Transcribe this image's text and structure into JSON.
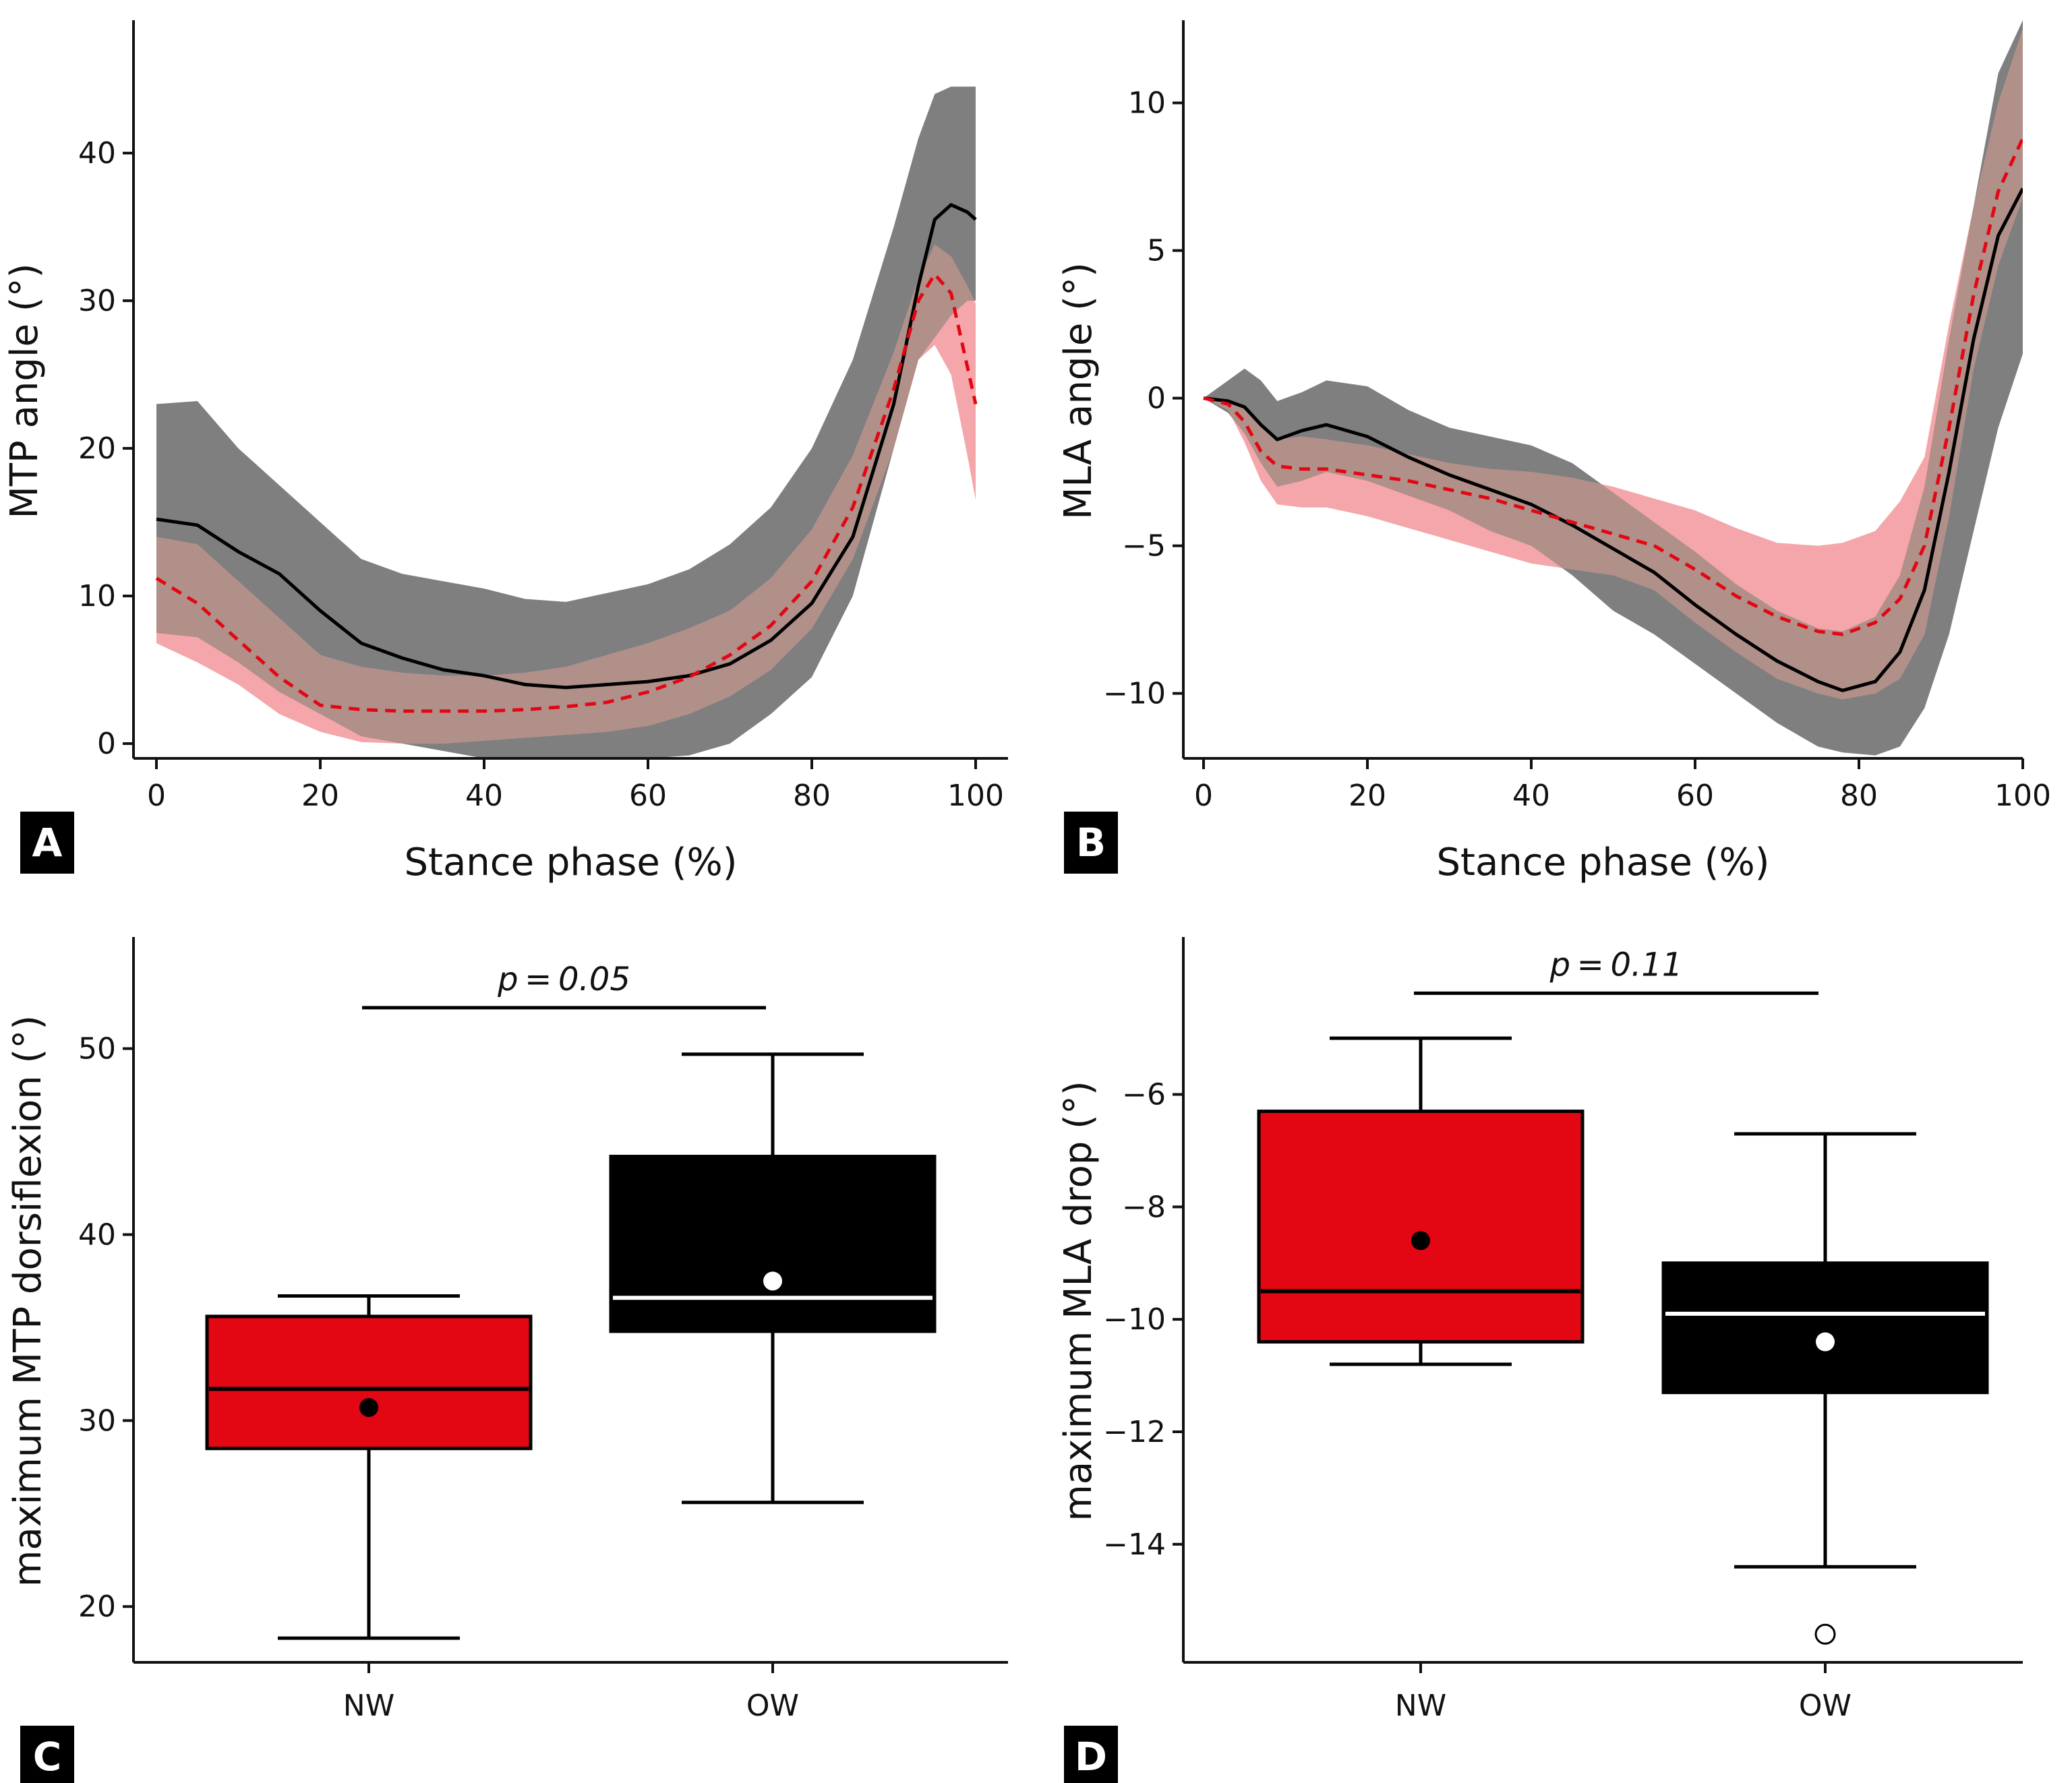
{
  "colors": {
    "nw": "#e30613",
    "ow": "#000000",
    "ow_band": "#7f7f7f",
    "nw_band": "#f4a6aa",
    "overlap_band": "#b09089",
    "axis": "#111111",
    "label_bg": "#000000",
    "label_text": "#ffffff"
  },
  "chart_data": [
    {
      "id": "A",
      "panel_label": "A",
      "type": "line",
      "title": "",
      "xlabel": "Stance phase (%)",
      "ylabel": "MTP angle (°)",
      "xlim": [
        -3,
        104
      ],
      "ylim": [
        -1,
        49
      ],
      "xticks": [
        0,
        20,
        40,
        60,
        80,
        100
      ],
      "xtick_labels": [
        "0",
        "20",
        "40",
        "60",
        "80",
        "100"
      ],
      "yticks": [
        0,
        10,
        20,
        30,
        40
      ],
      "ytick_labels": [
        "0",
        "10",
        "20",
        "30",
        "40"
      ],
      "series": [
        {
          "name": "OW",
          "style": "solid",
          "x": [
            0,
            5,
            10,
            15,
            20,
            25,
            30,
            35,
            40,
            45,
            50,
            55,
            60,
            65,
            70,
            75,
            80,
            85,
            90,
            93,
            95,
            97,
            99,
            100
          ],
          "mean": [
            15.2,
            14.8,
            13.0,
            11.5,
            9.0,
            6.8,
            5.8,
            5.0,
            4.6,
            4.0,
            3.8,
            4.0,
            4.2,
            4.6,
            5.4,
            7.0,
            9.5,
            14.0,
            23.0,
            31.0,
            35.5,
            36.5,
            36.0,
            35.5
          ],
          "upper": [
            23.0,
            23.2,
            20.0,
            17.5,
            15.0,
            12.5,
            11.5,
            11.0,
            10.5,
            9.8,
            9.6,
            10.2,
            10.8,
            11.8,
            13.5,
            16.0,
            20.0,
            26.0,
            35.0,
            41.0,
            44.0,
            44.5,
            44.5,
            44.5
          ],
          "lower": [
            7.5,
            7.2,
            5.5,
            3.5,
            2.0,
            0.5,
            0.0,
            -0.5,
            -1.0,
            -1.2,
            -1.2,
            -1.2,
            -1.0,
            -0.8,
            0.0,
            2.0,
            4.5,
            10.0,
            20.0,
            26.0,
            27.5,
            29.0,
            30.0,
            30.0
          ]
        },
        {
          "name": "NW",
          "style": "dashed",
          "x": [
            0,
            5,
            10,
            15,
            20,
            25,
            30,
            35,
            40,
            45,
            50,
            55,
            60,
            65,
            70,
            75,
            80,
            85,
            90,
            93,
            95,
            97,
            99,
            100
          ],
          "mean": [
            11.2,
            9.5,
            7.0,
            4.5,
            2.6,
            2.3,
            2.2,
            2.2,
            2.2,
            2.3,
            2.5,
            2.8,
            3.5,
            4.5,
            6.0,
            8.0,
            11.0,
            16.0,
            24.0,
            30.0,
            31.8,
            30.5,
            25.5,
            23.0
          ],
          "upper": [
            14.0,
            13.5,
            11.0,
            8.5,
            6.0,
            5.2,
            4.8,
            4.6,
            4.6,
            4.8,
            5.2,
            6.0,
            6.8,
            7.8,
            9.0,
            11.2,
            14.5,
            19.5,
            26.5,
            31.5,
            33.8,
            33.0,
            31.0,
            29.8
          ],
          "lower": [
            6.8,
            5.5,
            4.0,
            2.0,
            0.8,
            0.1,
            0.0,
            0.0,
            0.2,
            0.4,
            0.6,
            0.8,
            1.2,
            2.0,
            3.2,
            5.0,
            7.8,
            12.5,
            20.0,
            26.0,
            27.0,
            25.0,
            19.5,
            16.5
          ]
        }
      ]
    },
    {
      "id": "B",
      "panel_label": "B",
      "type": "line",
      "title": "",
      "xlabel": "Stance phase (%)",
      "ylabel": "MLA angle (°)",
      "xlim": [
        -3,
        104
      ],
      "ylim": [
        -12.2,
        12.8
      ],
      "xticks": [
        0,
        20,
        40,
        60,
        80,
        100
      ],
      "xtick_labels": [
        "0",
        "20",
        "40",
        "60",
        "80",
        "100"
      ],
      "yticks": [
        -10,
        -5,
        0,
        5,
        10
      ],
      "ytick_labels": [
        "−10",
        "−5",
        "0",
        "5",
        "10"
      ],
      "series": [
        {
          "name": "OW",
          "style": "solid",
          "x": [
            0,
            3,
            5,
            7,
            9,
            12,
            15,
            20,
            25,
            30,
            35,
            40,
            45,
            50,
            55,
            60,
            65,
            70,
            75,
            78,
            82,
            85,
            88,
            91,
            94,
            97,
            100
          ],
          "mean": [
            0.0,
            -0.1,
            -0.3,
            -0.9,
            -1.4,
            -1.1,
            -0.9,
            -1.3,
            -2.0,
            -2.6,
            -3.1,
            -3.6,
            -4.3,
            -5.1,
            -5.9,
            -7.0,
            -8.0,
            -8.9,
            -9.6,
            -9.9,
            -9.6,
            -8.6,
            -6.5,
            -2.5,
            2.0,
            5.5,
            7.1
          ],
          "upper": [
            0.0,
            0.6,
            1.0,
            0.6,
            -0.1,
            0.2,
            0.6,
            0.4,
            -0.4,
            -1.0,
            -1.3,
            -1.6,
            -2.2,
            -3.2,
            -4.2,
            -5.2,
            -6.3,
            -7.2,
            -7.8,
            -7.9,
            -7.4,
            -6.0,
            -3.0,
            2.0,
            6.5,
            11.0,
            12.8
          ],
          "lower": [
            0.0,
            -0.5,
            -1.2,
            -2.2,
            -3.0,
            -2.8,
            -2.5,
            -2.8,
            -3.3,
            -3.8,
            -4.5,
            -5.0,
            -6.0,
            -7.2,
            -8.0,
            -9.0,
            -10.0,
            -11.0,
            -11.8,
            -12.0,
            -12.1,
            -11.8,
            -10.5,
            -8.0,
            -4.5,
            -1.0,
            1.5
          ]
        },
        {
          "name": "NW",
          "style": "dashed",
          "x": [
            0,
            3,
            5,
            7,
            9,
            12,
            15,
            20,
            25,
            30,
            35,
            40,
            45,
            50,
            55,
            60,
            65,
            70,
            75,
            78,
            82,
            85,
            88,
            91,
            94,
            97,
            100
          ],
          "mean": [
            0.0,
            -0.2,
            -0.8,
            -1.8,
            -2.3,
            -2.4,
            -2.4,
            -2.6,
            -2.8,
            -3.1,
            -3.4,
            -3.8,
            -4.2,
            -4.6,
            -5.0,
            -5.8,
            -6.7,
            -7.4,
            -7.9,
            -8.0,
            -7.6,
            -6.8,
            -5.0,
            -1.0,
            3.5,
            7.0,
            8.8
          ],
          "upper": [
            0.0,
            -0.1,
            -0.3,
            -0.9,
            -1.4,
            -1.3,
            -1.4,
            -1.6,
            -1.9,
            -2.2,
            -2.4,
            -2.5,
            -2.7,
            -3.0,
            -3.4,
            -3.8,
            -4.4,
            -4.9,
            -5.0,
            -4.9,
            -4.5,
            -3.5,
            -2.0,
            2.5,
            6.5,
            10.0,
            12.5
          ],
          "lower": [
            0.0,
            -0.4,
            -1.5,
            -2.8,
            -3.6,
            -3.7,
            -3.7,
            -4.0,
            -4.4,
            -4.8,
            -5.2,
            -5.6,
            -5.8,
            -6.0,
            -6.5,
            -7.6,
            -8.6,
            -9.5,
            -10.0,
            -10.2,
            -10.0,
            -9.5,
            -8.0,
            -4.0,
            1.0,
            4.5,
            6.8
          ]
        }
      ]
    },
    {
      "id": "C",
      "panel_label": "C",
      "type": "box",
      "title": "",
      "xlabel": "",
      "ylabel": "maximum MTP dorsiflexion (°)",
      "categories": [
        "NW",
        "OW"
      ],
      "ylim": [
        17,
        56
      ],
      "yticks": [
        20,
        30,
        40,
        50
      ],
      "ytick_labels": [
        "20",
        "30",
        "40",
        "50"
      ],
      "boxes": [
        {
          "group": "NW",
          "whisker_low": 18.3,
          "q1": 28.5,
          "median": 31.7,
          "q3": 35.6,
          "whisker_high": 36.7,
          "mean": 30.7,
          "outliers": []
        },
        {
          "group": "OW",
          "whisker_low": 25.6,
          "q1": 34.8,
          "median": 36.6,
          "q3": 44.2,
          "whisker_high": 49.7,
          "mean": 37.5,
          "outliers": []
        }
      ],
      "significance": {
        "label": "p = 0.05",
        "y": 52.2
      }
    },
    {
      "id": "D",
      "panel_label": "D",
      "type": "box",
      "title": "",
      "xlabel": "",
      "ylabel": "maximum MLA drop (°)",
      "categories": [
        "NW",
        "OW"
      ],
      "ylim": [
        -16.1,
        -3.2
      ],
      "yticks": [
        -14,
        -12,
        -10,
        -8,
        -6
      ],
      "ytick_labels": [
        "−14",
        "−12",
        "−10",
        "−8",
        "−6"
      ],
      "boxes": [
        {
          "group": "NW",
          "whisker_low": -10.8,
          "q1": -10.4,
          "median": -9.5,
          "q3": -6.3,
          "whisker_high": -5.0,
          "mean": -8.6,
          "outliers": []
        },
        {
          "group": "OW",
          "whisker_low": -14.4,
          "q1": -11.3,
          "median": -9.9,
          "q3": -9.0,
          "whisker_high": -6.7,
          "mean": -10.4,
          "outliers": [
            -15.6
          ]
        }
      ],
      "significance": {
        "label": "p = 0.11",
        "y": -4.2
      }
    }
  ]
}
